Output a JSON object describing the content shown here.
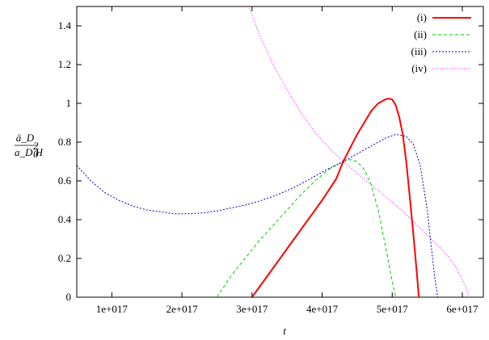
{
  "chart_data": {
    "type": "line",
    "xlabel": "t",
    "ylabel": {
      "numerator": "ä_D",
      "denominator_base": "a_D H",
      "denominator_sup": "2",
      "denominator_sub": "0"
    },
    "xlim": [
      5e+16,
      6.3e+17
    ],
    "ylim": [
      0,
      1.5
    ],
    "x_ticks": [
      {
        "value": 1e+17,
        "label": "1e+017"
      },
      {
        "value": 2e+17,
        "label": "2e+017"
      },
      {
        "value": 3e+17,
        "label": "3e+017"
      },
      {
        "value": 4e+17,
        "label": "4e+017"
      },
      {
        "value": 5e+17,
        "label": "5e+017"
      },
      {
        "value": 6e+17,
        "label": "6e+017"
      }
    ],
    "y_ticks": [
      {
        "value": 0,
        "label": "0"
      },
      {
        "value": 0.2,
        "label": "0.2"
      },
      {
        "value": 0.4,
        "label": "0.4"
      },
      {
        "value": 0.6,
        "label": "0.6"
      },
      {
        "value": 0.8,
        "label": "0.8"
      },
      {
        "value": 1.0,
        "label": "1"
      },
      {
        "value": 1.2,
        "label": "1.2"
      },
      {
        "value": 1.4,
        "label": "1.4"
      }
    ],
    "grid": false,
    "legend_position": "top-right",
    "series": [
      {
        "name": "(i)",
        "color": "#ff0000",
        "dash": "solid",
        "width": 2,
        "x": [
          3e+17,
          3.2e+17,
          3.4e+17,
          3.6e+17,
          3.8e+17,
          4e+17,
          4.2e+17,
          4.3e+17,
          4.4e+17,
          4.5e+17,
          4.6e+17,
          4.7e+17,
          4.8e+17,
          4.9e+17,
          4.95e+17,
          5e+17,
          5.05e+17,
          5.1e+17,
          5.15e+17,
          5.2e+17,
          5.25e+17,
          5.3e+17,
          5.35e+17,
          5.38e+17
        ],
        "y": [
          0.0,
          0.1,
          0.2,
          0.3,
          0.4,
          0.5,
          0.61,
          0.7,
          0.77,
          0.84,
          0.9,
          0.96,
          1.0,
          1.02,
          1.025,
          1.02,
          0.99,
          0.93,
          0.84,
          0.7,
          0.52,
          0.33,
          0.13,
          0.0
        ]
      },
      {
        "name": "(ii)",
        "color": "#00cc00",
        "dash": "4,3",
        "width": 1,
        "x": [
          2.5e+17,
          2.7e+17,
          2.9e+17,
          3.1e+17,
          3.3e+17,
          3.5e+17,
          3.7e+17,
          3.9e+17,
          4.1e+17,
          4.3e+17,
          4.4e+17,
          4.5e+17,
          4.6e+17,
          4.7e+17,
          4.8e+17,
          4.9e+17,
          5e+17,
          5.05e+17
        ],
        "y": [
          0.0,
          0.11,
          0.2,
          0.29,
          0.37,
          0.45,
          0.53,
          0.6,
          0.66,
          0.7,
          0.71,
          0.7,
          0.66,
          0.58,
          0.45,
          0.27,
          0.08,
          0.0
        ]
      },
      {
        "name": "(iii)",
        "color": "#0000cc",
        "dash": "2,2",
        "width": 1,
        "x": [
          5e+16,
          7e+16,
          9e+16,
          1.1e+17,
          1.3e+17,
          1.5e+17,
          1.7e+17,
          1.9e+17,
          2.1e+17,
          2.3e+17,
          2.5e+17,
          2.7e+17,
          2.9e+17,
          3.1e+17,
          3.3e+17,
          3.5e+17,
          3.7e+17,
          3.9e+17,
          4.1e+17,
          4.3e+17,
          4.5e+17,
          4.7e+17,
          4.9e+17,
          5.05e+17,
          5.2e+17,
          5.3e+17,
          5.4e+17,
          5.5e+17,
          5.6e+17,
          5.65e+17
        ],
        "y": [
          0.68,
          0.6,
          0.54,
          0.5,
          0.47,
          0.45,
          0.44,
          0.43,
          0.43,
          0.435,
          0.445,
          0.46,
          0.475,
          0.495,
          0.52,
          0.55,
          0.585,
          0.625,
          0.665,
          0.7,
          0.74,
          0.78,
          0.82,
          0.84,
          0.83,
          0.79,
          0.68,
          0.45,
          0.12,
          0.0
        ]
      },
      {
        "name": "(iv)",
        "color": "#ff00ff",
        "dash": "1,2",
        "width": 1,
        "x": [
          2.95e+17,
          3.1e+17,
          3.3e+17,
          3.5e+17,
          3.7e+17,
          3.9e+17,
          4.1e+17,
          4.3e+17,
          4.5e+17,
          4.7e+17,
          4.9e+17,
          5.1e+17,
          5.3e+17,
          5.5e+17,
          5.7e+17,
          5.8e+17,
          5.9e+17,
          6e+17,
          6.05e+17,
          6.1e+17
        ],
        "y": [
          1.5,
          1.36,
          1.2,
          1.07,
          0.95,
          0.85,
          0.77,
          0.7,
          0.64,
          0.58,
          0.52,
          0.46,
          0.39,
          0.32,
          0.25,
          0.21,
          0.16,
          0.09,
          0.05,
          0.0
        ]
      }
    ]
  }
}
